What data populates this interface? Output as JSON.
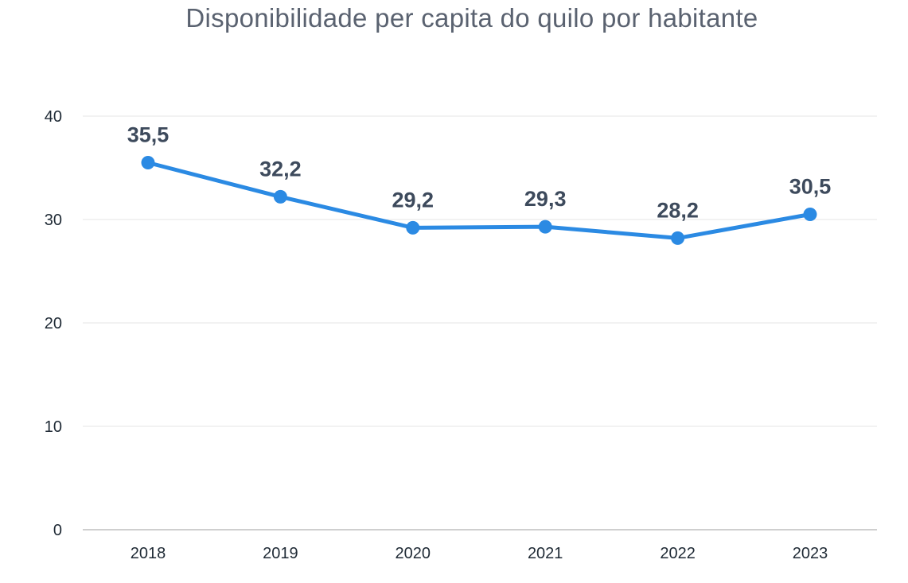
{
  "chart_data": {
    "type": "line",
    "title": "Disponibilidade per capita do quilo por habitante",
    "categories": [
      "2018",
      "2019",
      "2020",
      "2021",
      "2022",
      "2023"
    ],
    "series": [
      {
        "values": [
          35.5,
          32.2,
          29.2,
          29.3,
          28.2,
          30.5
        ],
        "data_labels": [
          "35,5",
          "32,2",
          "29,2",
          "29,3",
          "28,2",
          "30,5"
        ]
      }
    ],
    "yticks": [
      "0",
      "10",
      "20",
      "30",
      "40"
    ],
    "ylim": [
      0,
      40
    ],
    "xlabel": "",
    "ylabel": "",
    "grid": true,
    "colors": {
      "line": "#2b8ae3",
      "grid": "#e6e6e6",
      "axis": "#bfbfbf",
      "label": "#3d4a5c"
    }
  }
}
